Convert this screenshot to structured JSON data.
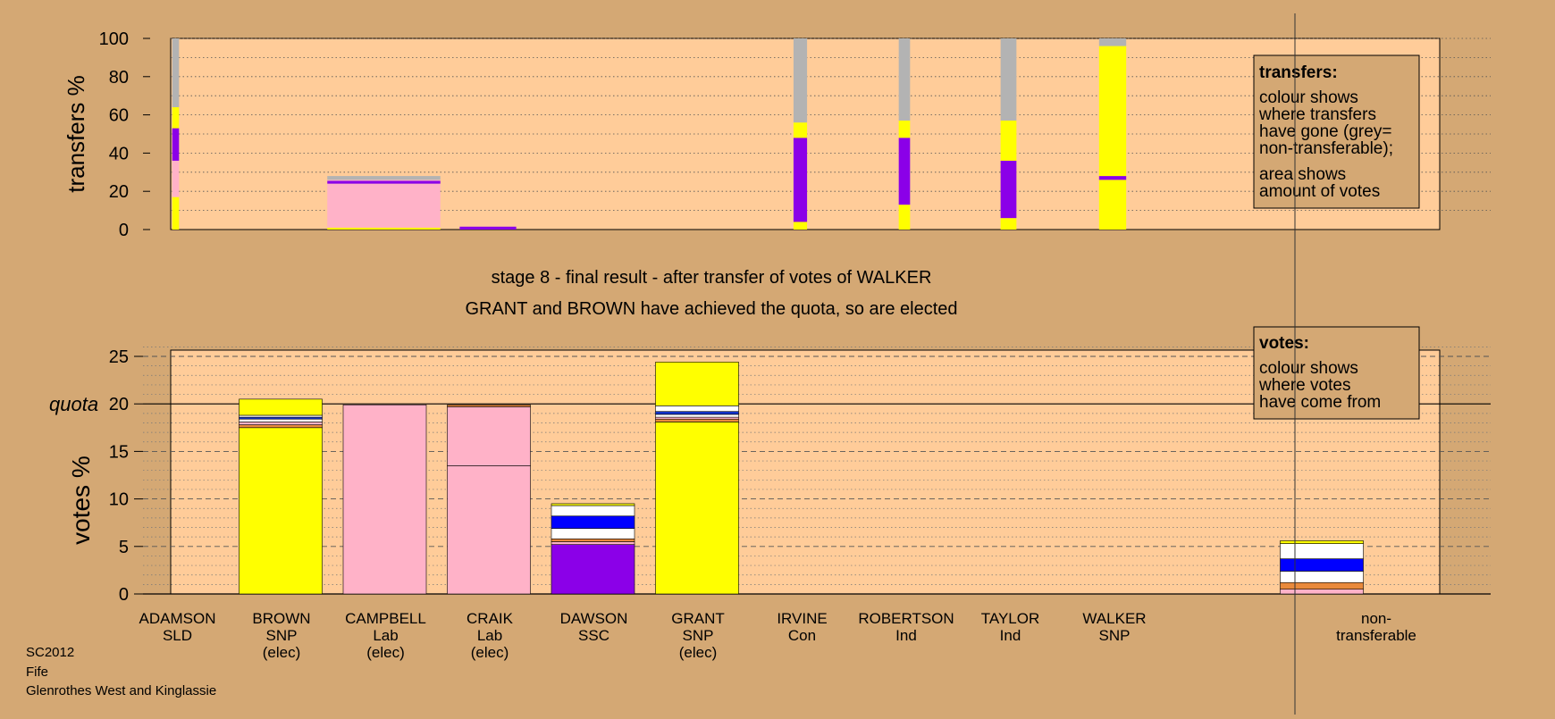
{
  "chart_data": [
    {
      "type": "bar",
      "name": "transfers",
      "ylabel": "transfers %",
      "ylim": [
        0,
        100
      ],
      "yticks": [
        0,
        20,
        40,
        60,
        80,
        100
      ],
      "grid": "dotted horizontal",
      "note": {
        "title": "transfers:",
        "lines": [
          "colour shows",
          "where transfers",
          "have gone (grey=",
          "non-transferable);"
        ],
        "lines2": [
          "area shows",
          "amount of votes"
        ]
      },
      "bars": [
        {
          "candidate": "ADAMSON",
          "width_share": 0.06,
          "segments": [
            {
              "color": "#FFFF00",
              "from": 0,
              "to": 17
            },
            {
              "color": "#FFB2C8",
              "from": 17,
              "to": 36
            },
            {
              "color": "#8B00E8",
              "from": 36,
              "to": 53
            },
            {
              "color": "#FFFF00",
              "from": 53,
              "to": 64
            },
            {
              "color": "#B3B3B3",
              "from": 64,
              "to": 100
            }
          ]
        },
        {
          "candidate": "CAMPBELL",
          "width_share": 1.0,
          "segments": [
            {
              "color": "#FFFF00",
              "from": 0,
              "to": 1
            },
            {
              "color": "#FFB2C8",
              "from": 1,
              "to": 24
            },
            {
              "color": "#8B00E8",
              "from": 24,
              "to": 25.5
            },
            {
              "color": "#FFB2C8",
              "from": 25.5,
              "to": 26
            },
            {
              "color": "#B3B3B3",
              "from": 26,
              "to": 28
            }
          ]
        },
        {
          "candidate": "CRAIK",
          "width_share": 0.5,
          "segments": [
            {
              "color": "#8B00E8",
              "from": 0,
              "to": 1.5
            }
          ]
        },
        {
          "candidate": "IRVINE",
          "width_share": 0.12,
          "segments": [
            {
              "color": "#FFFF00",
              "from": 0,
              "to": 4
            },
            {
              "color": "#8B00E8",
              "from": 4,
              "to": 48
            },
            {
              "color": "#FFFF00",
              "from": 48,
              "to": 56
            },
            {
              "color": "#B3B3B3",
              "from": 56,
              "to": 100
            }
          ]
        },
        {
          "candidate": "ROBERTSON",
          "width_share": 0.1,
          "segments": [
            {
              "color": "#FFFF00",
              "from": 0,
              "to": 13
            },
            {
              "color": "#8B00E8",
              "from": 13,
              "to": 48
            },
            {
              "color": "#FFFF00",
              "from": 48,
              "to": 57
            },
            {
              "color": "#B3B3B3",
              "from": 57,
              "to": 100
            }
          ]
        },
        {
          "candidate": "TAYLOR",
          "width_share": 0.14,
          "segments": [
            {
              "color": "#FFFF00",
              "from": 0,
              "to": 6
            },
            {
              "color": "#8B00E8",
              "from": 6,
              "to": 36
            },
            {
              "color": "#FFFF00",
              "from": 36,
              "to": 57
            },
            {
              "color": "#B3B3B3",
              "from": 57,
              "to": 100
            }
          ]
        },
        {
          "candidate": "WALKER",
          "width_share": 0.24,
          "segments": [
            {
              "color": "#FFFF00",
              "from": 0,
              "to": 26
            },
            {
              "color": "#8B00E8",
              "from": 26,
              "to": 28
            },
            {
              "color": "#FFFF00",
              "from": 28,
              "to": 96
            },
            {
              "color": "#B3B3B3",
              "from": 96,
              "to": 100
            }
          ]
        }
      ]
    },
    {
      "type": "bar",
      "name": "votes",
      "ylabel": "votes %",
      "ylim": [
        0,
        25
      ],
      "yticks": [
        0,
        5,
        10,
        15,
        20,
        25
      ],
      "quota": 20,
      "quota_label": "quota",
      "grid": "dashed horizontal",
      "note": {
        "title": "votes:",
        "lines": [
          "colour shows",
          "where votes",
          "have come from"
        ]
      },
      "categories": [
        {
          "name": "ADAMSON",
          "party": "SLD",
          "status": ""
        },
        {
          "name": "BROWN",
          "party": "SNP",
          "status": "(elec)"
        },
        {
          "name": "CAMPBELL",
          "party": "Lab",
          "status": "(elec)"
        },
        {
          "name": "CRAIK",
          "party": "Lab",
          "status": "(elec)"
        },
        {
          "name": "DAWSON",
          "party": "SSC",
          "status": ""
        },
        {
          "name": "GRANT",
          "party": "SNP",
          "status": "(elec)"
        },
        {
          "name": "IRVINE",
          "party": "Con",
          "status": ""
        },
        {
          "name": "ROBERTSON",
          "party": "Ind",
          "status": ""
        },
        {
          "name": "TAYLOR",
          "party": "Ind",
          "status": ""
        },
        {
          "name": "WALKER",
          "party": "SNP",
          "status": ""
        },
        {
          "name": "",
          "party": "",
          "status": ""
        },
        {
          "name": "non-",
          "party": "transferable",
          "status": ""
        }
      ],
      "stacks": [
        [],
        [
          {
            "color": "#FFFF00",
            "from": 0,
            "to": 17.5
          },
          {
            "color": "#E98A3C",
            "from": 17.5,
            "to": 17.8
          },
          {
            "color": "#FFB2C8",
            "from": 17.8,
            "to": 18.1
          },
          {
            "color": "#FFFFFF",
            "from": 18.1,
            "to": 18.4
          },
          {
            "color": "#1133CC",
            "from": 18.4,
            "to": 18.6
          },
          {
            "color": "#FFFFFF",
            "from": 18.6,
            "to": 18.8
          },
          {
            "color": "#FFFF00",
            "from": 18.8,
            "to": 20.5
          }
        ],
        [
          {
            "color": "#FFB2C8",
            "from": 0,
            "to": 19.9
          }
        ],
        [
          {
            "color": "#FFB2C8",
            "from": 0,
            "to": 13.5
          },
          {
            "color": "#FFB2C8",
            "from": 13.5,
            "to": 19.7
          },
          {
            "color": "#E98A3C",
            "from": 19.7,
            "to": 19.9
          }
        ],
        [
          {
            "color": "#8B00E8",
            "from": 0,
            "to": 5.2
          },
          {
            "color": "#FFB2C8",
            "from": 5.2,
            "to": 5.5
          },
          {
            "color": "#E98A3C",
            "from": 5.5,
            "to": 5.8
          },
          {
            "color": "#FFFFFF",
            "from": 5.8,
            "to": 6.9
          },
          {
            "color": "#0000FF",
            "from": 6.9,
            "to": 8.2
          },
          {
            "color": "#FFFFFF",
            "from": 8.2,
            "to": 9.3
          },
          {
            "color": "#FFFF00",
            "from": 9.3,
            "to": 9.5
          }
        ],
        [
          {
            "color": "#FFFF00",
            "from": 0,
            "to": 18.1
          },
          {
            "color": "#E98A3C",
            "from": 18.1,
            "to": 18.4
          },
          {
            "color": "#FFB2C8",
            "from": 18.4,
            "to": 18.6
          },
          {
            "color": "#FFFFFF",
            "from": 18.6,
            "to": 18.9
          },
          {
            "color": "#1133CC",
            "from": 18.9,
            "to": 19.2
          },
          {
            "color": "#FFFFFF",
            "from": 19.2,
            "to": 19.8
          },
          {
            "color": "#FFFF00",
            "from": 19.8,
            "to": 24.4
          }
        ],
        [],
        [],
        [],
        [],
        [],
        [
          {
            "color": "#FFB2C8",
            "from": 0,
            "to": 0.5
          },
          {
            "color": "#E98A3C",
            "from": 0.5,
            "to": 1.2
          },
          {
            "color": "#FFFFFF",
            "from": 1.2,
            "to": 2.4
          },
          {
            "color": "#0000FF",
            "from": 2.4,
            "to": 3.7
          },
          {
            "color": "#FFFFFF",
            "from": 3.7,
            "to": 5.3
          },
          {
            "color": "#FFFF00",
            "from": 5.3,
            "to": 5.6
          }
        ]
      ]
    }
  ],
  "title_line1": "stage 8 - final result - after transfer of votes of WALKER",
  "title_line2": "GRANT and BROWN have achieved the quota, so are elected",
  "footer": {
    "line1": "SC2012",
    "line2": "Fife",
    "line3": "Glenrothes West and Kinglassie"
  }
}
